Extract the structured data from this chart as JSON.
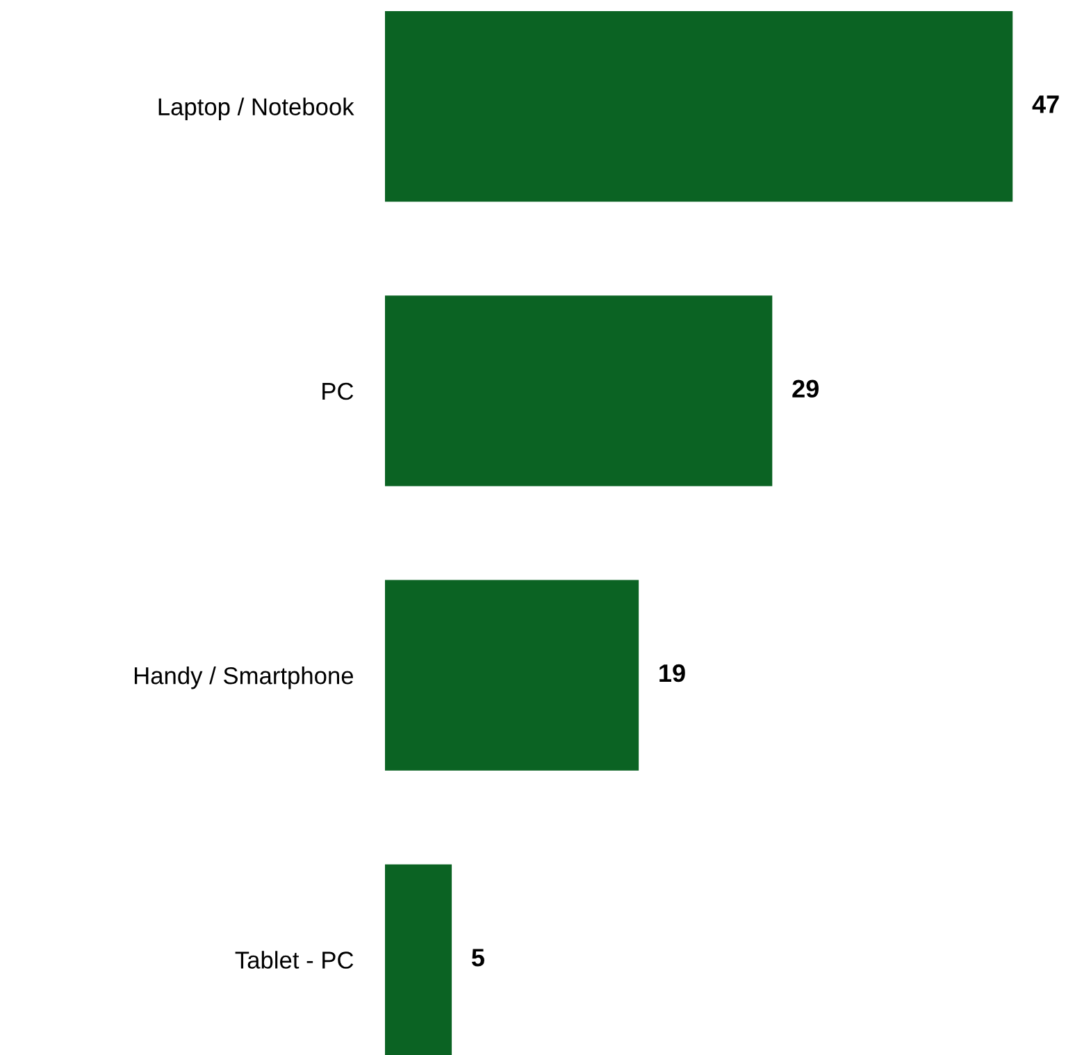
{
  "chart_data": {
    "type": "bar",
    "orientation": "horizontal",
    "categories": [
      "Laptop / Notebook",
      "PC",
      "Handy / Smartphone",
      "Tablet - PC"
    ],
    "values": [
      47,
      29,
      19,
      5
    ],
    "color": "#0b6323",
    "data_labels": true,
    "grid": false
  }
}
